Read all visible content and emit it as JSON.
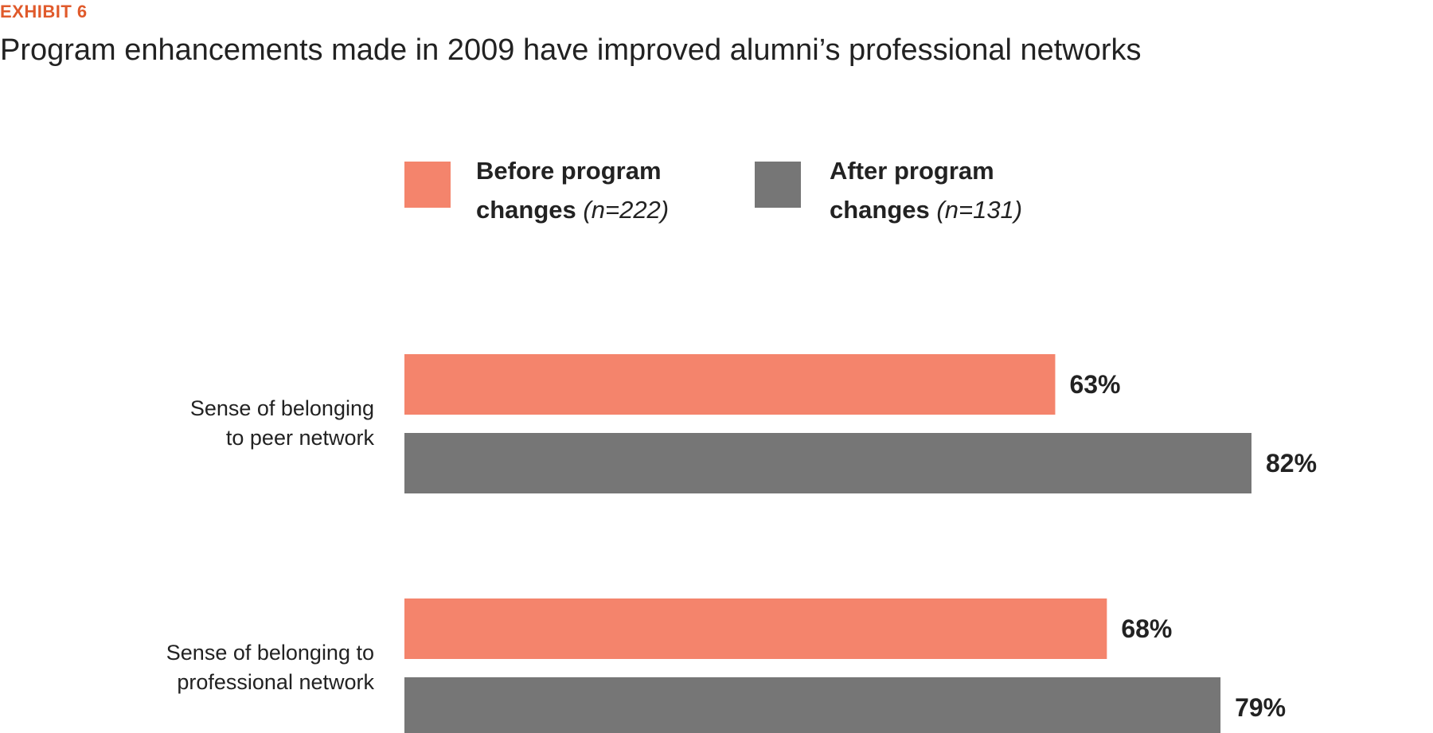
{
  "header": {
    "exhibit": "EXHIBIT 6",
    "title": "Program enhancements made in 2009 have improved alumni’s professional networks"
  },
  "legend": {
    "items": [
      {
        "line1": "Before program",
        "line2": "changes",
        "n": "(n=222)"
      },
      {
        "line1": "After program",
        "line2": "changes",
        "n": "(n=131)"
      }
    ]
  },
  "colors": {
    "accent": "#E05A2B",
    "before": "#F4846C",
    "after": "#767676",
    "text": "#222222"
  },
  "chart_data": {
    "type": "bar",
    "orientation": "horizontal",
    "title": "Program enhancements made in 2009 have improved alumni’s professional networks",
    "categories": [
      {
        "line1": "Sense of belonging",
        "line2": "to peer network"
      },
      {
        "line1": "Sense of belonging to",
        "line2": "professional network"
      }
    ],
    "series": [
      {
        "name": "Before program changes (n=222)",
        "values": [
          63,
          68
        ],
        "labels": [
          "63%",
          "68%"
        ]
      },
      {
        "name": "After program changes (n=131)",
        "values": [
          82,
          79
        ],
        "labels": [
          "82%",
          "79%"
        ]
      }
    ],
    "xlim": [
      0,
      100
    ],
    "grid": false,
    "legend_position": "top"
  }
}
